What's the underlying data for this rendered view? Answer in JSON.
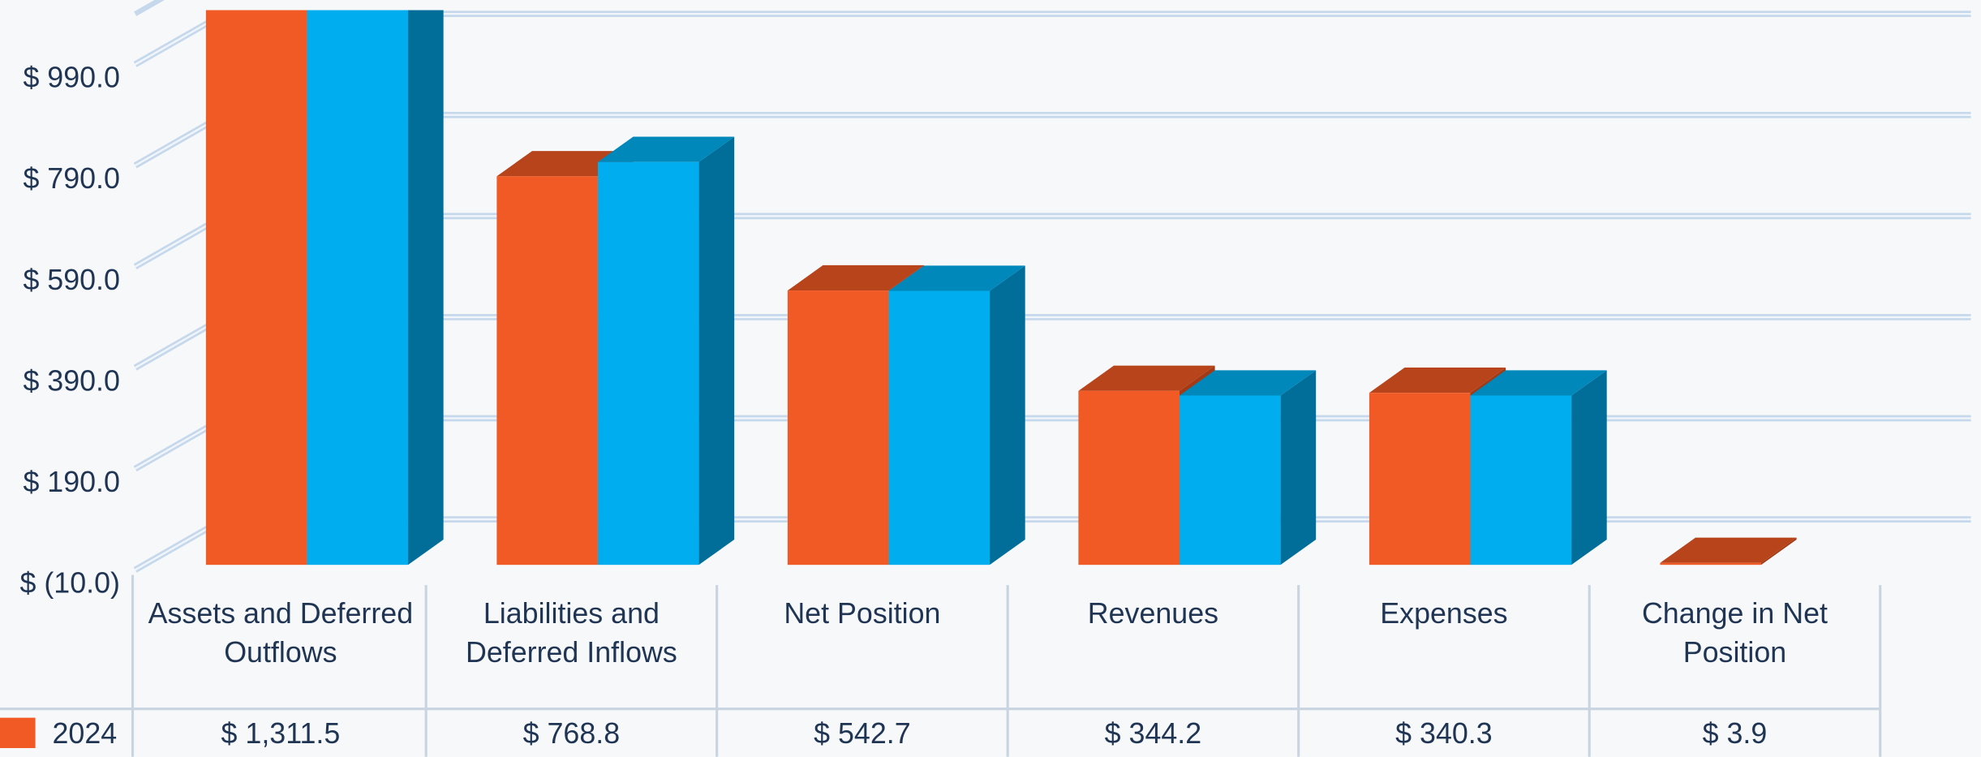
{
  "chart_data": {
    "type": "bar3d",
    "categories": [
      "Assets and Deferred Outflows",
      "Liabilities and Deferred Inflows",
      "Net Position",
      "Revenues",
      "Expenses",
      "Change in Net Position"
    ],
    "series": [
      {
        "name": "2024",
        "color": "#f15a24",
        "values": [
          1311.5,
          768.8,
          542.7,
          344.2,
          340.3,
          3.9
        ],
        "value_labels": [
          "$ 1,311.5",
          "$ 768.8",
          "$ 542.7",
          "$ 344.2",
          "$ 340.3",
          "$ 3.9"
        ]
      },
      {
        "color": "#00aeef",
        "values": [
          1250,
          797,
          542,
          335,
          335,
          null
        ]
      }
    ],
    "ylim": [
      -10,
      1190
    ],
    "yticks": [
      {
        "value": -10,
        "label": "$ (10.0)"
      },
      {
        "value": 190,
        "label": "$ 190.0"
      },
      {
        "value": 390,
        "label": "$ 390.0"
      },
      {
        "value": 590,
        "label": "$ 590.0"
      },
      {
        "value": 790,
        "label": "$ 790.0"
      },
      {
        "value": 990,
        "label": "$ 990.0"
      }
    ],
    "grid": true
  }
}
